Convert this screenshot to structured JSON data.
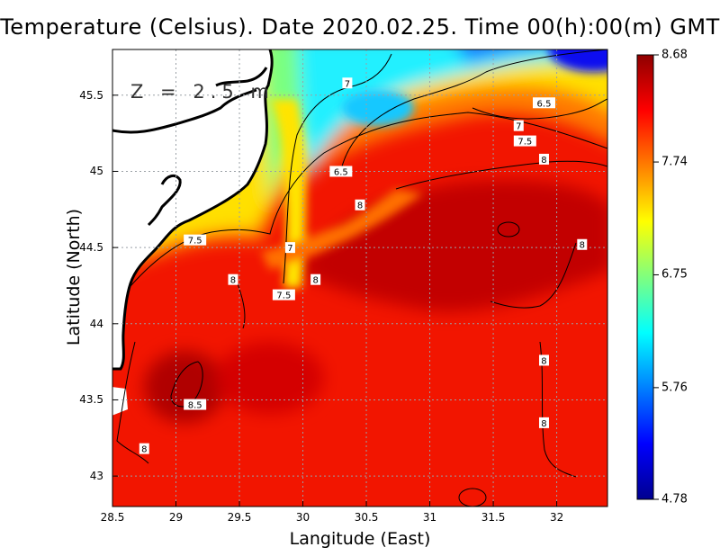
{
  "title": "Temperature (Celsius). Date 2020.02.25. Time 00(h):00(m) GMT",
  "depth_label": "Z = 2.5 m",
  "xlabel": "Langitude (East)",
  "ylabel": "Latitude (North)",
  "chart_data": {
    "type": "heatmap",
    "title": "Temperature (Celsius). Date 2020.02.25. Time 00(h):00(m) GMT",
    "xlabel": "Langitude (East)",
    "ylabel": "Latitude (North)",
    "xlim": [
      28.5,
      32.4
    ],
    "ylim": [
      42.8,
      45.8
    ],
    "x_ticks": [
      "28.5",
      "29",
      "29.5",
      "30",
      "30.5",
      "31",
      "31.5",
      "32"
    ],
    "y_ticks": [
      "43",
      "43.5",
      "44",
      "44.5",
      "45",
      "45.5"
    ],
    "colorbar": {
      "ticks": [
        "8.68",
        "7.74",
        "6.75",
        "5.76",
        "4.78"
      ],
      "min": 4.78,
      "max": 8.68,
      "colors": [
        "#00008f",
        "#0000ff",
        "#007fff",
        "#00ffff",
        "#7fff7f",
        "#ffff00",
        "#ff7f00",
        "#ff0000",
        "#8f0000"
      ]
    },
    "grid": true,
    "contour_labels": [
      {
        "text": "7",
        "x": 30.35,
        "y": 45.58
      },
      {
        "text": "6.5",
        "x": 30.3,
        "y": 45.0
      },
      {
        "text": "6.5",
        "x": 31.9,
        "y": 45.45
      },
      {
        "text": "7",
        "x": 31.7,
        "y": 45.3
      },
      {
        "text": "7.5",
        "x": 31.75,
        "y": 45.2
      },
      {
        "text": "8",
        "x": 31.9,
        "y": 45.08
      },
      {
        "text": "8",
        "x": 30.45,
        "y": 44.78
      },
      {
        "text": "8",
        "x": 32.2,
        "y": 44.52
      },
      {
        "text": "7.5",
        "x": 29.15,
        "y": 44.55
      },
      {
        "text": "7",
        "x": 29.9,
        "y": 44.5
      },
      {
        "text": "8",
        "x": 29.45,
        "y": 44.29
      },
      {
        "text": "8",
        "x": 30.1,
        "y": 44.29
      },
      {
        "text": "7.5",
        "x": 29.85,
        "y": 44.19
      },
      {
        "text": "8.5",
        "x": 29.15,
        "y": 43.47
      },
      {
        "text": "8",
        "x": 28.75,
        "y": 43.18
      },
      {
        "text": "8",
        "x": 31.9,
        "y": 43.76
      },
      {
        "text": "8",
        "x": 31.9,
        "y": 43.35
      }
    ]
  }
}
